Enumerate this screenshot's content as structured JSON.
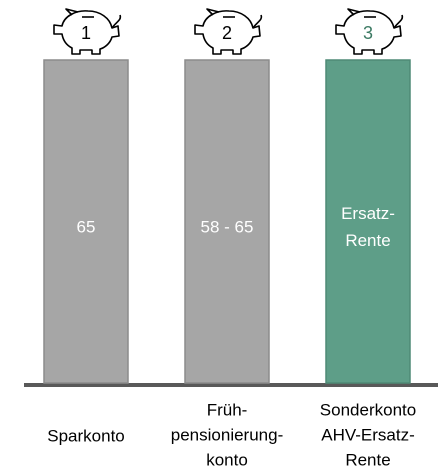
{
  "pillars": [
    {
      "number": "1",
      "label": [
        "65"
      ],
      "caption": [
        "Sparkonto"
      ]
    },
    {
      "number": "2",
      "label": [
        "58 - 65"
      ],
      "caption": [
        "Früh-",
        "pensionierung-",
        "konto"
      ]
    },
    {
      "number": "3",
      "label": [
        "Ersatz-",
        "Rente"
      ],
      "caption": [
        "Sonderkonto",
        "AHV-Ersatz-",
        "Rente"
      ]
    }
  ]
}
